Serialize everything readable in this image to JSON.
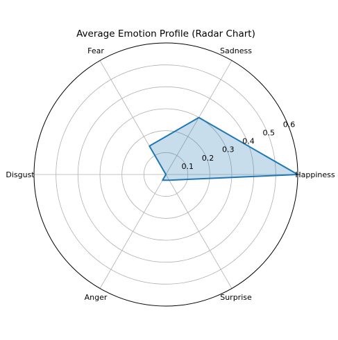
{
  "chart_data": {
    "type": "radar",
    "title": "Average Emotion Profile (Radar Chart)",
    "categories": [
      "Happiness",
      "Sadness",
      "Fear",
      "Disgust",
      "Anger",
      "Surprise"
    ],
    "values": [
      0.6,
      0.3,
      0.15,
      0.0,
      0.03,
      0.03
    ],
    "rlim": [
      0,
      0.6
    ],
    "r_ticks": [
      0.1,
      0.2,
      0.3,
      0.4,
      0.5,
      0.6
    ],
    "r_tick_labels": [
      "0.1",
      "0.2",
      "0.3",
      "0.4",
      "0.5",
      "0.6"
    ],
    "grid": true,
    "line_color": "#1f77b4",
    "fill_color": "#1f77b4",
    "fill_opacity": 0.25,
    "grid_color": "#b0b0b0"
  }
}
